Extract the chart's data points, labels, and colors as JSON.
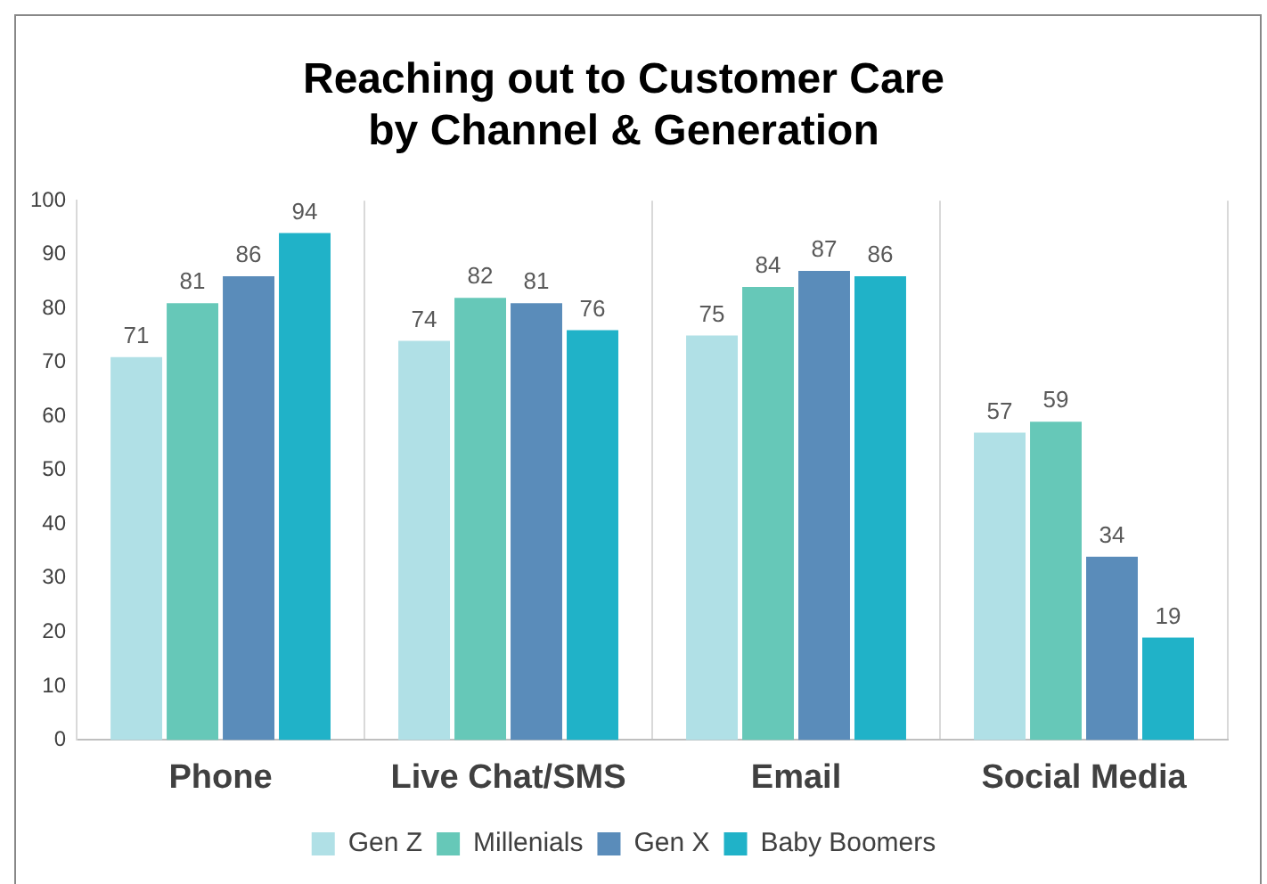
{
  "chart_data": {
    "type": "bar",
    "title": "Reaching out to Customer Care\nby Channel & Generation",
    "categories": [
      "Phone",
      "Live Chat/SMS",
      "Email",
      "Social Media"
    ],
    "series": [
      {
        "name": "Gen Z",
        "color": "#b0e0e6",
        "values": [
          71,
          74,
          75,
          57
        ]
      },
      {
        "name": "Millenials",
        "color": "#66c8b8",
        "values": [
          81,
          82,
          84,
          59
        ]
      },
      {
        "name": "Gen X",
        "color": "#5a8cba",
        "values": [
          86,
          81,
          87,
          34
        ]
      },
      {
        "name": "Baby Boomers",
        "color": "#20b2c8",
        "values": [
          94,
          76,
          86,
          19
        ]
      }
    ],
    "ylim": [
      0,
      100
    ],
    "yticks": [
      0,
      10,
      20,
      30,
      40,
      50,
      60,
      70,
      80,
      90,
      100
    ],
    "grid": "x",
    "legend": "bottom",
    "data_labels": true
  }
}
